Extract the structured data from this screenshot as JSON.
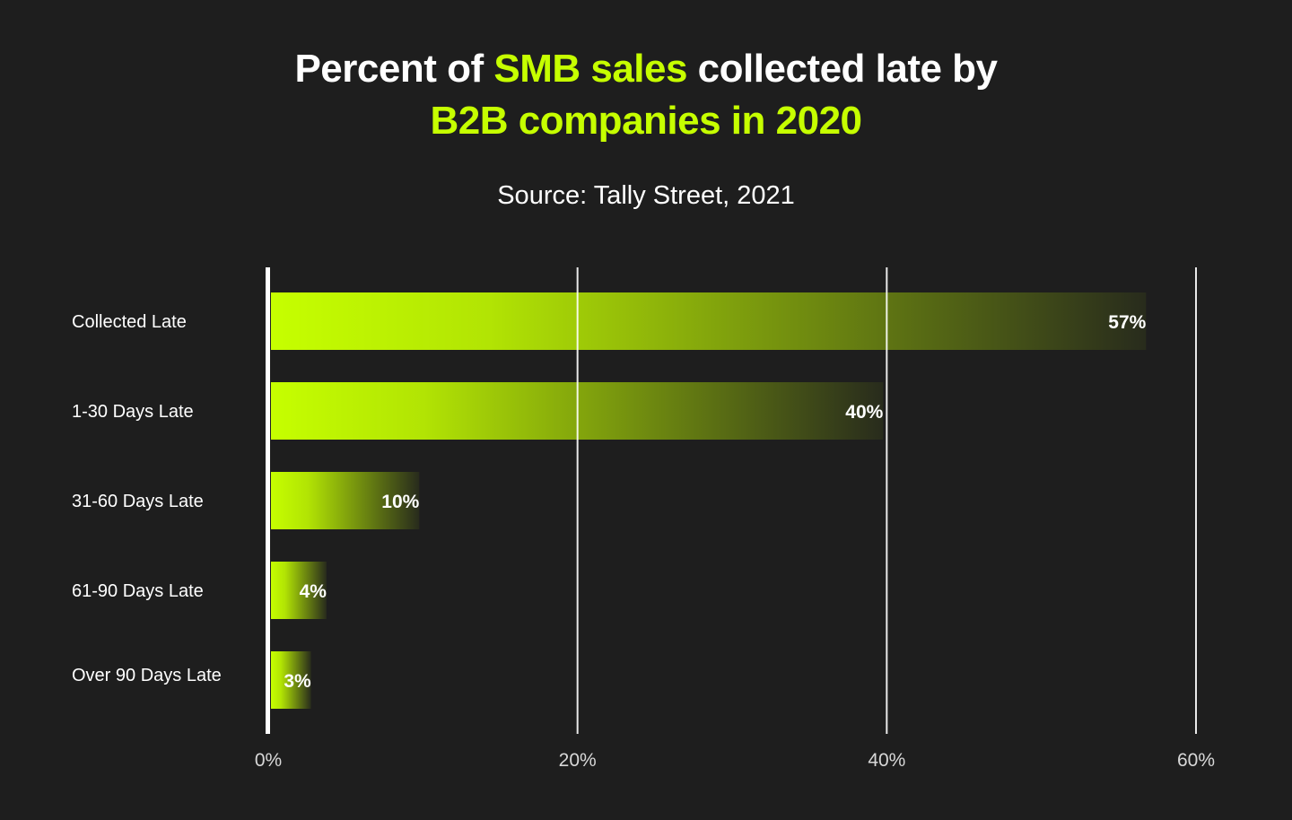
{
  "title": {
    "line1_part1": "Percent of ",
    "line1_highlight": "SMB sales",
    "line1_part2": " collected late by",
    "line2_highlight": "B2B companies in 2020"
  },
  "subtitle": "Source: Tally Street, 2021",
  "colors": {
    "background": "#1e1e1e",
    "bar": "#c6ff00",
    "highlight": "#c6ff00",
    "text": "#ffffff"
  },
  "chart_data": {
    "type": "bar",
    "orientation": "horizontal",
    "title": "Percent of SMB sales collected late by B2B companies in 2020",
    "subtitle": "Source: Tally Street, 2021",
    "categories": [
      "Collected Late",
      "1-30 Days Late",
      "31-60 Days Late",
      "61-90 Days Late",
      "Over 90 Days Late"
    ],
    "values": [
      57,
      40,
      10,
      4,
      3
    ],
    "data_labels": [
      "57%",
      "40%",
      "10%",
      "4%",
      "3%"
    ],
    "xlim": [
      0,
      60
    ],
    "xticks": [
      0,
      20,
      40,
      60
    ],
    "xtick_labels": [
      "0%",
      "20%",
      "40%",
      "60%"
    ],
    "grid": "vertical",
    "bar_style": "gradient fading to background"
  }
}
